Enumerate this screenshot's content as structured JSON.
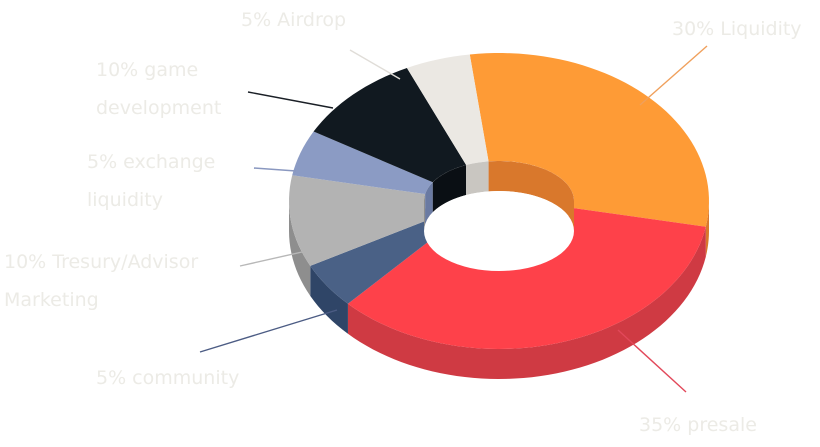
{
  "chart_data": {
    "type": "pie",
    "style": "3d-donut",
    "title": "",
    "slices": [
      {
        "name": "Liquidity",
        "value": 30,
        "label_lines": [
          "30% Liquidity"
        ],
        "color": "#fe9b36",
        "side_color": "#d9782c",
        "line_color": "#f0a05c"
      },
      {
        "name": "presale",
        "value": 35,
        "label_lines": [
          "35%  presale"
        ],
        "color": "#fe414a",
        "side_color": "#cf3a43",
        "line_color": "#e2485a"
      },
      {
        "name": "community",
        "value": 5,
        "label_lines": [
          "5% community"
        ],
        "color": "#4a6186",
        "side_color": "#2f4567",
        "line_color": "#4c5c84"
      },
      {
        "name": "Tresury/Advisor Marketing",
        "value": 10,
        "label_lines": [
          "10% Tresury/Advisor",
          "Marketing"
        ],
        "color": "#b3b3b3",
        "side_color": "#8e8e8e",
        "line_color": "#b8b8b8"
      },
      {
        "name": "exchange liquidity",
        "value": 5,
        "label_lines": [
          "5%  exchange",
          "liquidity"
        ],
        "color": "#8b9bc4",
        "side_color": "#6a7aa2",
        "line_color": "#8a98c0"
      },
      {
        "name": "game development",
        "value": 10,
        "label_lines": [
          "10% game",
          "development"
        ],
        "color": "#111920",
        "side_color": "#0a0f14",
        "line_color": "#1a1f26"
      },
      {
        "name": "Airdrop",
        "value": 5,
        "label_lines": [
          "5% Airdrop"
        ],
        "color": "#ebe8e3",
        "side_color": "#c9c6c1",
        "line_color": "#e0ddd8"
      }
    ],
    "label_color": "#ecebe6",
    "inner_wall_color": "#d0782c"
  }
}
